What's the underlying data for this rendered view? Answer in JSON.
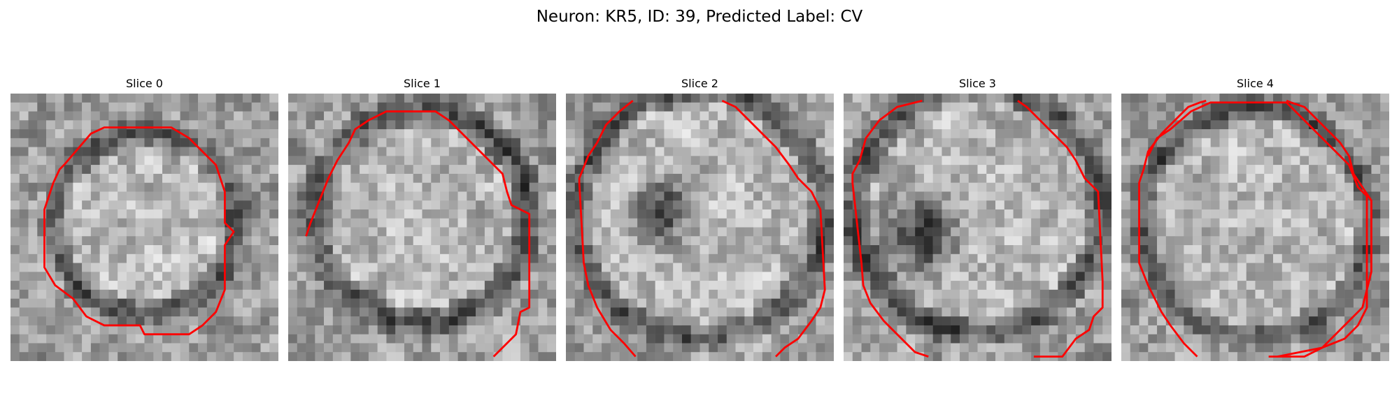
{
  "figure": {
    "title": "Neuron: KR5, ID: 39, Predicted Label: CV"
  },
  "colors": {
    "contour": "#ff0000",
    "background": "#ffffff"
  },
  "panels": [
    {
      "title": "Slice 0"
    },
    {
      "title": "Slice 1"
    },
    {
      "title": "Slice 2"
    },
    {
      "title": "Slice 3"
    },
    {
      "title": "Slice 4"
    }
  ]
}
